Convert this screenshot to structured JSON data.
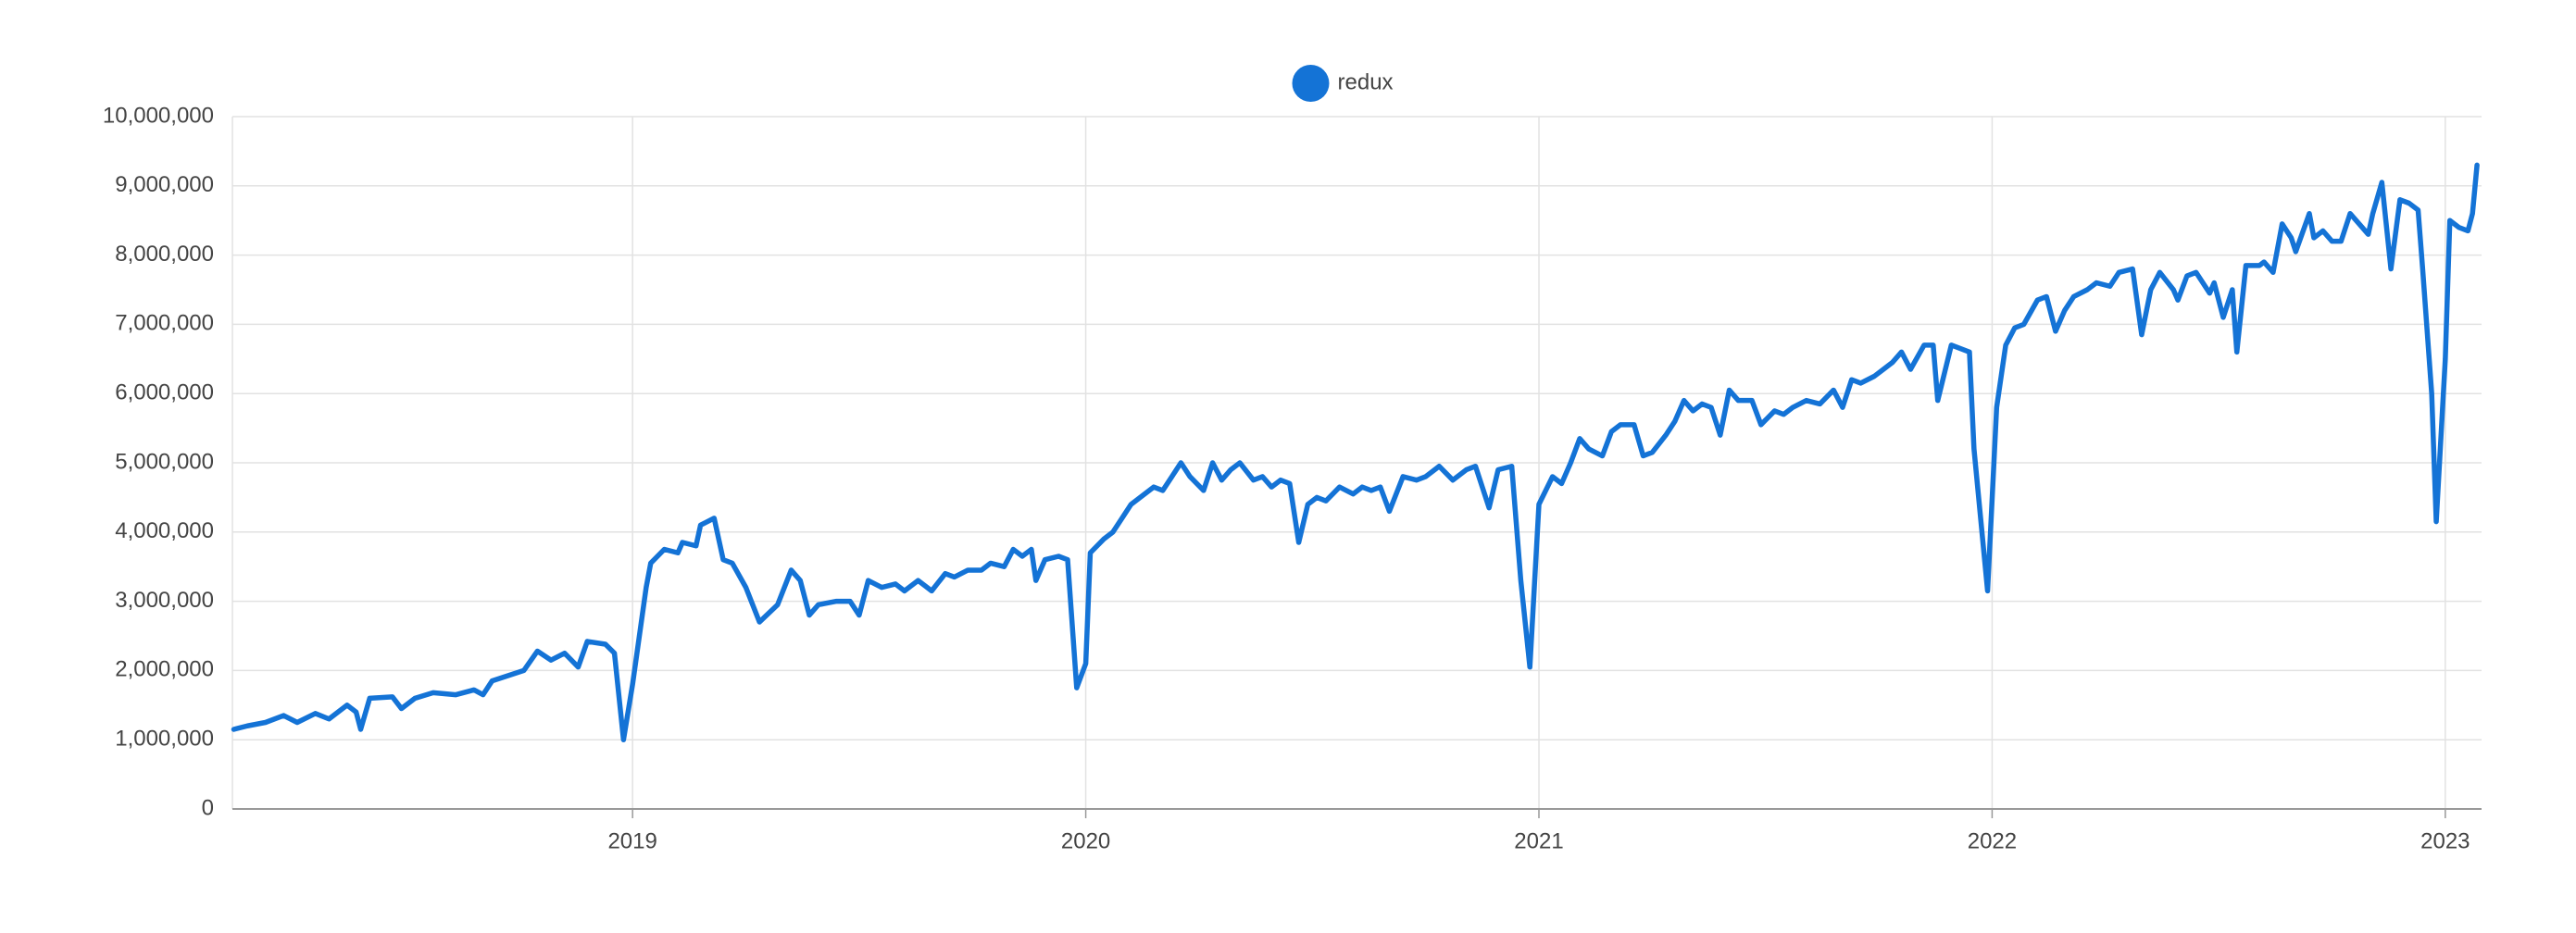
{
  "chart_data": {
    "type": "line",
    "x": [
      2018.12,
      2018.15,
      2018.19,
      2018.23,
      2018.26,
      2018.3,
      2018.33,
      2018.37,
      2018.39,
      2018.4,
      2018.42,
      2018.47,
      2018.49,
      2018.52,
      2018.56,
      2018.61,
      2018.65,
      2018.67,
      2018.69,
      2018.76,
      2018.79,
      2018.82,
      2018.85,
      2018.88,
      2018.9,
      2018.94,
      2018.96,
      2018.98,
      2019.0,
      2019.03,
      2019.04,
      2019.07,
      2019.1,
      2019.11,
      2019.14,
      2019.15,
      2019.18,
      2019.2,
      2019.22,
      2019.25,
      2019.28,
      2019.32,
      2019.35,
      2019.37,
      2019.39,
      2019.41,
      2019.45,
      2019.48,
      2019.5,
      2019.52,
      2019.55,
      2019.58,
      2019.6,
      2019.63,
      2019.66,
      2019.69,
      2019.71,
      2019.74,
      2019.77,
      2019.79,
      2019.82,
      2019.84,
      2019.86,
      2019.88,
      2019.89,
      2019.91,
      2019.94,
      2019.96,
      2019.98,
      2020.0,
      2020.01,
      2020.04,
      2020.06,
      2020.08,
      2020.1,
      2020.12,
      2020.15,
      2020.17,
      2020.19,
      2020.21,
      2020.23,
      2020.26,
      2020.28,
      2020.3,
      2020.32,
      2020.34,
      2020.37,
      2020.39,
      2020.41,
      2020.43,
      2020.45,
      2020.47,
      2020.49,
      2020.51,
      2020.53,
      2020.56,
      2020.59,
      2020.61,
      2020.63,
      2020.65,
      2020.67,
      2020.7,
      2020.73,
      2020.75,
      2020.78,
      2020.81,
      2020.84,
      2020.86,
      2020.89,
      2020.91,
      2020.94,
      2020.96,
      2020.98,
      2021.0,
      2021.03,
      2021.05,
      2021.07,
      2021.09,
      2021.11,
      2021.14,
      2021.16,
      2021.18,
      2021.21,
      2021.23,
      2021.25,
      2021.28,
      2021.3,
      2021.32,
      2021.34,
      2021.36,
      2021.38,
      2021.4,
      2021.42,
      2021.44,
      2021.47,
      2021.49,
      2021.52,
      2021.54,
      2021.56,
      2021.59,
      2021.62,
      2021.65,
      2021.67,
      2021.69,
      2021.71,
      2021.74,
      2021.76,
      2021.78,
      2021.8,
      2021.82,
      2021.85,
      2021.87,
      2021.88,
      2021.91,
      2021.93,
      2021.95,
      2021.96,
      2021.99,
      2022.01,
      2022.03,
      2022.05,
      2022.07,
      2022.1,
      2022.12,
      2022.14,
      2022.16,
      2022.18,
      2022.21,
      2022.23,
      2022.26,
      2022.28,
      2022.31,
      2022.33,
      2022.35,
      2022.37,
      2022.4,
      2022.41,
      2022.43,
      2022.45,
      2022.48,
      2022.49,
      2022.51,
      2022.53,
      2022.54,
      2022.56,
      2022.59,
      2022.6,
      2022.62,
      2022.64,
      2022.66,
      2022.67,
      2022.7,
      2022.71,
      2022.73,
      2022.75,
      2022.77,
      2022.79,
      2022.81,
      2022.83,
      2022.84,
      2022.86,
      2022.88,
      2022.9,
      2022.92,
      2022.94,
      2022.95,
      2022.97,
      2022.98,
      2023.0,
      2023.01,
      2023.03,
      2023.05,
      2023.06,
      2023.07
    ],
    "series": [
      {
        "name": "redux",
        "color": "#1473d6",
        "values": [
          1150000,
          1200000,
          1250000,
          1350000,
          1250000,
          1380000,
          1300000,
          1500000,
          1400000,
          1150000,
          1600000,
          1620000,
          1450000,
          1600000,
          1680000,
          1650000,
          1720000,
          1650000,
          1850000,
          2000000,
          2280000,
          2150000,
          2250000,
          2050000,
          2420000,
          2380000,
          2250000,
          1000000,
          1800000,
          3200000,
          3550000,
          3750000,
          3700000,
          3850000,
          3800000,
          4100000,
          4200000,
          3600000,
          3550000,
          3200000,
          2700000,
          2950000,
          3450000,
          3300000,
          2800000,
          2950000,
          3000000,
          3000000,
          2800000,
          3300000,
          3200000,
          3250000,
          3150000,
          3300000,
          3150000,
          3400000,
          3350000,
          3450000,
          3450000,
          3550000,
          3500000,
          3750000,
          3650000,
          3750000,
          3300000,
          3600000,
          3650000,
          3600000,
          1750000,
          2100000,
          3700000,
          3900000,
          4000000,
          4200000,
          4400000,
          4500000,
          4650000,
          4600000,
          4800000,
          5000000,
          4800000,
          4600000,
          5000000,
          4750000,
          4900000,
          5000000,
          4750000,
          4800000,
          4650000,
          4750000,
          4700000,
          3850000,
          4400000,
          4500000,
          4450000,
          4650000,
          4550000,
          4650000,
          4600000,
          4650000,
          4300000,
          4800000,
          4750000,
          4800000,
          4950000,
          4750000,
          4900000,
          4950000,
          4350000,
          4900000,
          4950000,
          3300000,
          2050000,
          4400000,
          4800000,
          4700000,
          5000000,
          5350000,
          5200000,
          5100000,
          5450000,
          5550000,
          5550000,
          5100000,
          5150000,
          5400000,
          5600000,
          5900000,
          5750000,
          5850000,
          5800000,
          5400000,
          6050000,
          5900000,
          5900000,
          5550000,
          5750000,
          5700000,
          5800000,
          5900000,
          5850000,
          6050000,
          5800000,
          6200000,
          6150000,
          6250000,
          6350000,
          6450000,
          6600000,
          6350000,
          6700000,
          6700000,
          5900000,
          6700000,
          6650000,
          6600000,
          5200000,
          3150000,
          5800000,
          6700000,
          6950000,
          7000000,
          7350000,
          7400000,
          6900000,
          7200000,
          7400000,
          7500000,
          7600000,
          7550000,
          7750000,
          7800000,
          6850000,
          7500000,
          7750000,
          7500000,
          7350000,
          7700000,
          7750000,
          7450000,
          7600000,
          7100000,
          7500000,
          6600000,
          7850000,
          7850000,
          7900000,
          7750000,
          8450000,
          8250000,
          8050000,
          8600000,
          8250000,
          8350000,
          8200000,
          8200000,
          8600000,
          8450000,
          8300000,
          8600000,
          9050000,
          7800000,
          8800000,
          8750000,
          8650000,
          7800000,
          6000000,
          4150000,
          6500000,
          8500000,
          8400000,
          8350000,
          8600000,
          9300000
        ]
      }
    ],
    "xlim": [
      2018.117,
      2023.08
    ],
    "xticks": [
      2019,
      2020,
      2021,
      2022,
      2023
    ],
    "ylim": [
      0,
      10000000
    ],
    "yticks": [
      0,
      {
        "value": 1000000,
        "label": "1,000,000"
      },
      {
        "value": 2000000,
        "label": "2,000,000"
      },
      {
        "value": 3000000,
        "label": "3,000,000"
      },
      {
        "value": 4000000,
        "label": "4,000,000"
      },
      {
        "value": 5000000,
        "label": "5,000,000"
      },
      {
        "value": 6000000,
        "label": "6,000,000"
      },
      {
        "value": 7000000,
        "label": "7,000,000"
      },
      {
        "value": 8000000,
        "label": "8,000,000"
      },
      {
        "value": 9000000,
        "label": "9,000,000"
      },
      {
        "value": 10000000,
        "label": "10,000,000"
      }
    ],
    "grid": true,
    "legend": "top"
  }
}
